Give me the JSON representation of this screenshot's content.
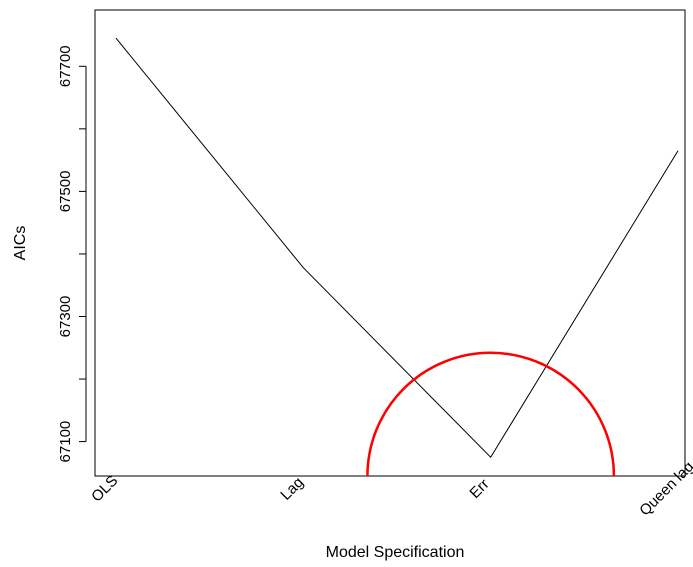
{
  "chart_data": {
    "type": "line",
    "title": "",
    "xlabel": "Model Specification",
    "ylabel": "AICs",
    "categories": [
      "OLS",
      "Lag",
      "Err",
      "Queen lag"
    ],
    "series": [
      {
        "values": [
          67745,
          67378,
          67075,
          67565
        ],
        "color": "#000000"
      }
    ],
    "y_ticks": [
      67100,
      67300,
      67500,
      67700
    ],
    "ylim": [
      67045,
      67790
    ],
    "annotation": {
      "shape": "semicircle",
      "color": "#ff0000",
      "center_category": "Err",
      "center_y": 67045,
      "radius_y": 197
    },
    "grid": false,
    "legend": "none"
  }
}
